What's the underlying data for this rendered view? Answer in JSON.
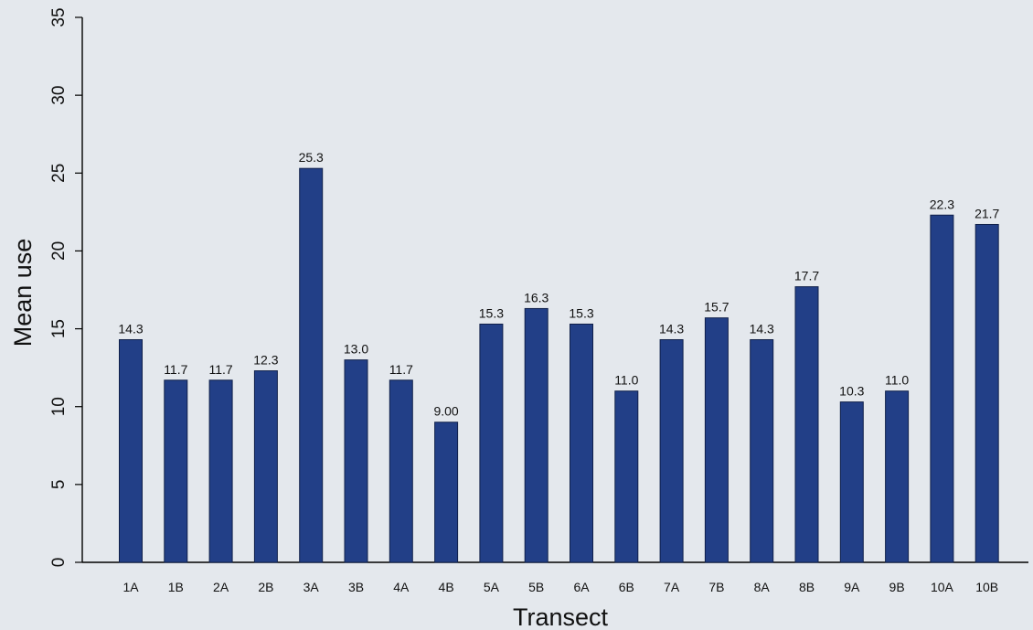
{
  "chart_data": {
    "type": "bar",
    "xlabel": "Transect",
    "ylabel": "Mean use",
    "ylim": [
      0,
      35
    ],
    "yticks": [
      "0",
      "5",
      "10",
      "15",
      "20",
      "25",
      "30",
      "35"
    ],
    "grid": false,
    "categories": [
      "1A",
      "1B",
      "2A",
      "2B",
      "3A",
      "3B",
      "4A",
      "4B",
      "5A",
      "5B",
      "6A",
      "6B",
      "7A",
      "7B",
      "8A",
      "8B",
      "9A",
      "9B",
      "10A",
      "10B"
    ],
    "values": [
      14.3,
      11.7,
      11.7,
      12.3,
      25.3,
      13.0,
      11.7,
      9.0,
      15.3,
      16.3,
      15.3,
      11.0,
      14.3,
      15.7,
      14.3,
      17.7,
      10.3,
      11.0,
      22.3,
      21.7
    ],
    "value_labels": [
      "14.3",
      "11.7",
      "11.7",
      "12.3",
      "25.3",
      "13.0",
      "11.7",
      "9.00",
      "15.3",
      "16.3",
      "15.3",
      "11.0",
      "14.3",
      "15.7",
      "14.3",
      "17.7",
      "10.3",
      "11.0",
      "22.3",
      "21.7"
    ],
    "bar_color": "#223f87"
  }
}
